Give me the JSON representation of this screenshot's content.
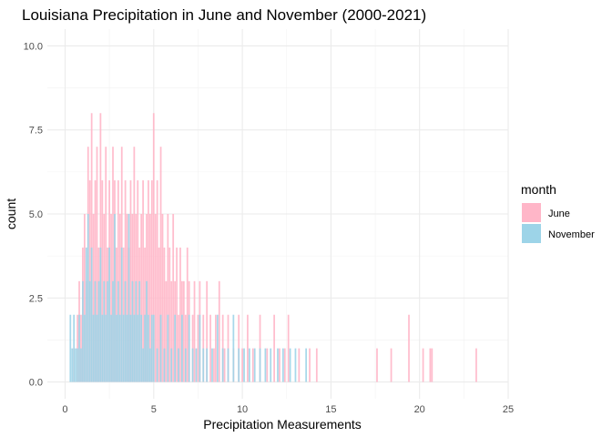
{
  "chart_data": {
    "type": "bar",
    "subtype": "histogram",
    "title": "Louisiana Precipitation in June and November (2000-2021)",
    "xlabel": "Precipitation Measurements",
    "ylabel": "count",
    "xlim": [
      -1,
      25
    ],
    "ylim": [
      -0.5,
      10.5
    ],
    "x_ticks": [
      0,
      5,
      10,
      15,
      20,
      25
    ],
    "x_tick_labels": [
      "0",
      "5",
      "10",
      "15",
      "20",
      "25"
    ],
    "y_ticks": [
      0,
      2.5,
      5,
      7.5,
      10
    ],
    "y_tick_labels": [
      "0.0",
      "2.5",
      "5.0",
      "7.5",
      "10.0"
    ],
    "grid": true,
    "legend": {
      "title": "month",
      "position": "right"
    },
    "series": [
      {
        "name": "June",
        "color": "#FFB6C8",
        "points": [
          [
            0.5,
            1
          ],
          [
            0.7,
            2
          ],
          [
            0.8,
            3
          ],
          [
            0.9,
            2
          ],
          [
            1.0,
            4
          ],
          [
            1.1,
            5
          ],
          [
            1.2,
            3
          ],
          [
            1.3,
            7
          ],
          [
            1.4,
            6
          ],
          [
            1.5,
            8
          ],
          [
            1.6,
            5
          ],
          [
            1.7,
            6
          ],
          [
            1.8,
            7
          ],
          [
            1.9,
            4
          ],
          [
            2.0,
            8
          ],
          [
            2.1,
            6
          ],
          [
            2.2,
            5
          ],
          [
            2.3,
            7
          ],
          [
            2.4,
            4
          ],
          [
            2.5,
            6
          ],
          [
            2.6,
            5
          ],
          [
            2.7,
            7
          ],
          [
            2.8,
            6
          ],
          [
            2.9,
            4
          ],
          [
            3.0,
            6
          ],
          [
            3.1,
            5
          ],
          [
            3.2,
            7
          ],
          [
            3.3,
            4
          ],
          [
            3.4,
            6
          ],
          [
            3.5,
            5
          ],
          [
            3.6,
            4
          ],
          [
            3.7,
            6
          ],
          [
            3.8,
            5
          ],
          [
            3.9,
            7
          ],
          [
            4.0,
            5
          ],
          [
            4.1,
            6
          ],
          [
            4.2,
            4
          ],
          [
            4.3,
            5
          ],
          [
            4.4,
            6
          ],
          [
            4.5,
            4
          ],
          [
            4.6,
            5
          ],
          [
            4.7,
            6
          ],
          [
            4.8,
            5
          ],
          [
            4.9,
            6
          ],
          [
            5.0,
            8
          ],
          [
            5.1,
            5
          ],
          [
            5.2,
            6
          ],
          [
            5.3,
            4
          ],
          [
            5.4,
            7
          ],
          [
            5.5,
            5
          ],
          [
            5.6,
            4
          ],
          [
            5.7,
            3
          ],
          [
            5.8,
            5
          ],
          [
            5.9,
            4
          ],
          [
            6.0,
            3
          ],
          [
            6.1,
            5
          ],
          [
            6.2,
            3
          ],
          [
            6.3,
            4
          ],
          [
            6.4,
            2
          ],
          [
            6.5,
            4
          ],
          [
            6.6,
            3
          ],
          [
            6.7,
            3
          ],
          [
            6.8,
            2
          ],
          [
            6.9,
            4
          ],
          [
            7.0,
            3
          ],
          [
            7.2,
            2
          ],
          [
            7.3,
            3
          ],
          [
            7.5,
            2
          ],
          [
            7.6,
            3
          ],
          [
            7.8,
            2
          ],
          [
            8.0,
            3
          ],
          [
            8.2,
            2
          ],
          [
            8.4,
            1
          ],
          [
            8.5,
            2
          ],
          [
            8.7,
            3
          ],
          [
            8.9,
            2
          ],
          [
            9.0,
            1
          ],
          [
            9.2,
            2
          ],
          [
            9.5,
            1
          ],
          [
            9.8,
            2
          ],
          [
            10.0,
            1
          ],
          [
            10.3,
            2
          ],
          [
            10.6,
            1
          ],
          [
            11.0,
            2
          ],
          [
            11.4,
            1
          ],
          [
            11.8,
            2
          ],
          [
            12.1,
            1
          ],
          [
            12.4,
            1
          ],
          [
            12.6,
            2
          ],
          [
            13.2,
            1
          ],
          [
            13.8,
            1
          ],
          [
            14.2,
            1
          ],
          [
            17.6,
            1
          ],
          [
            18.4,
            1
          ],
          [
            19.4,
            2
          ],
          [
            20.2,
            1
          ],
          [
            20.6,
            1
          ],
          [
            20.7,
            1
          ],
          [
            23.2,
            1
          ]
        ]
      },
      {
        "name": "November",
        "color": "#9DD4E8",
        "points": [
          [
            0.3,
            2
          ],
          [
            0.4,
            1
          ],
          [
            0.5,
            2
          ],
          [
            0.6,
            1
          ],
          [
            0.7,
            1
          ],
          [
            0.8,
            2
          ],
          [
            0.9,
            1
          ],
          [
            1.0,
            3
          ],
          [
            1.1,
            2
          ],
          [
            1.2,
            4
          ],
          [
            1.3,
            5
          ],
          [
            1.4,
            3
          ],
          [
            1.5,
            4
          ],
          [
            1.6,
            2
          ],
          [
            1.7,
            3
          ],
          [
            1.8,
            2
          ],
          [
            1.9,
            3
          ],
          [
            2.0,
            4
          ],
          [
            2.1,
            2
          ],
          [
            2.2,
            3
          ],
          [
            2.3,
            2
          ],
          [
            2.4,
            3
          ],
          [
            2.5,
            4
          ],
          [
            2.6,
            2
          ],
          [
            2.7,
            3
          ],
          [
            2.8,
            5
          ],
          [
            2.9,
            2
          ],
          [
            3.0,
            3
          ],
          [
            3.1,
            2
          ],
          [
            3.2,
            4
          ],
          [
            3.3,
            2
          ],
          [
            3.4,
            3
          ],
          [
            3.5,
            2
          ],
          [
            3.6,
            5
          ],
          [
            3.7,
            2
          ],
          [
            3.8,
            3
          ],
          [
            3.9,
            2
          ],
          [
            4.0,
            3
          ],
          [
            4.1,
            2
          ],
          [
            4.2,
            3
          ],
          [
            4.3,
            2
          ],
          [
            4.4,
            1
          ],
          [
            4.5,
            2
          ],
          [
            4.6,
            3
          ],
          [
            4.7,
            2
          ],
          [
            4.8,
            1
          ],
          [
            4.9,
            2
          ],
          [
            5.0,
            2
          ],
          [
            5.2,
            1
          ],
          [
            5.4,
            2
          ],
          [
            5.6,
            1
          ],
          [
            5.8,
            2
          ],
          [
            6.0,
            1
          ],
          [
            6.2,
            2
          ],
          [
            6.4,
            1
          ],
          [
            6.6,
            2
          ],
          [
            6.8,
            1
          ],
          [
            7.0,
            2
          ],
          [
            7.2,
            1
          ],
          [
            7.4,
            1
          ],
          [
            7.6,
            2
          ],
          [
            7.8,
            1
          ],
          [
            8.0,
            1
          ],
          [
            8.3,
            1
          ],
          [
            8.6,
            2
          ],
          [
            8.9,
            1
          ],
          [
            9.2,
            1
          ],
          [
            9.5,
            2
          ],
          [
            9.8,
            1
          ],
          [
            10.1,
            1
          ],
          [
            10.4,
            1
          ],
          [
            10.7,
            1
          ],
          [
            11.0,
            1
          ],
          [
            11.3,
            1
          ],
          [
            11.6,
            1
          ],
          [
            12.0,
            1
          ],
          [
            12.3,
            1
          ],
          [
            12.7,
            1
          ],
          [
            13.0,
            1
          ],
          [
            13.6,
            1
          ]
        ]
      }
    ]
  }
}
